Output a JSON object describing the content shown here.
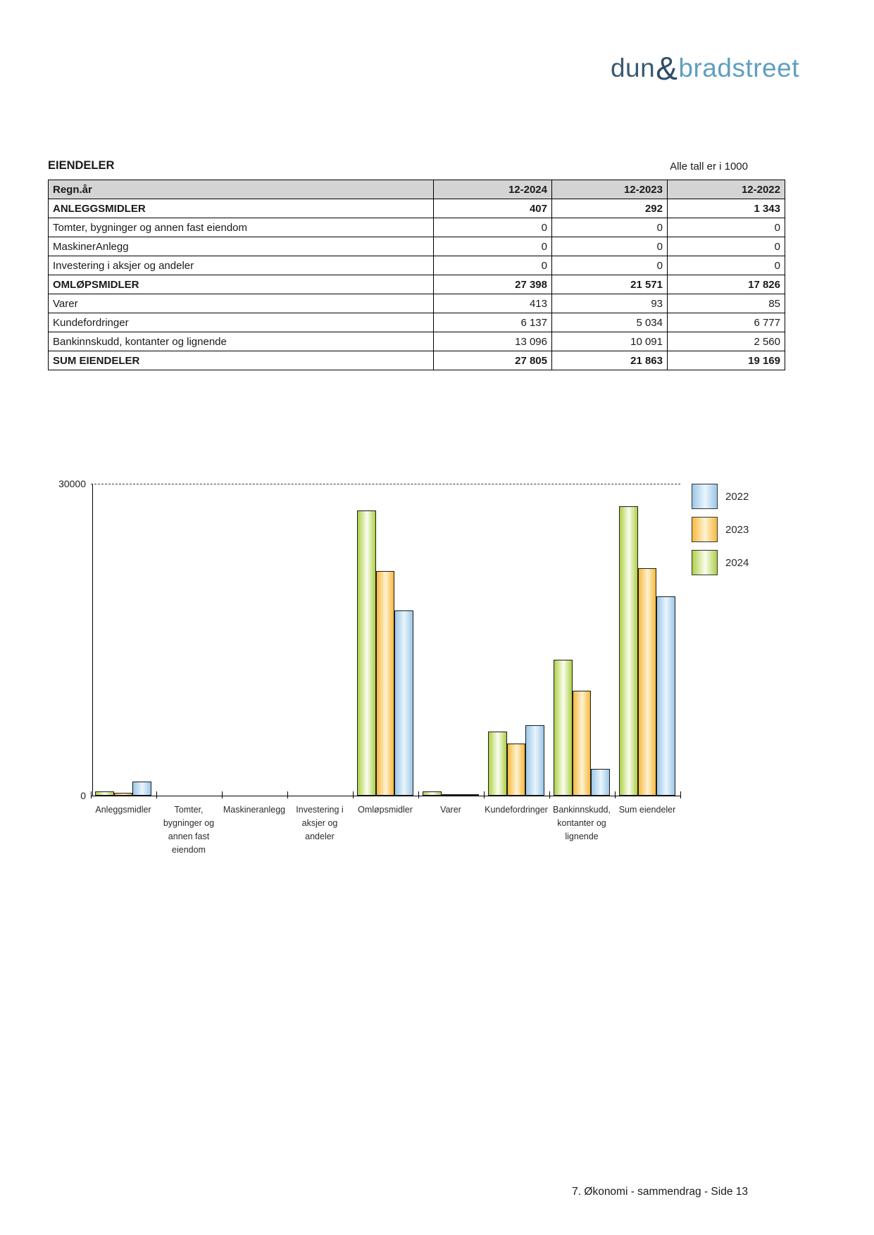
{
  "logo": {
    "word1": "dun",
    "ampersand": "&",
    "word2": "bradstreet",
    "color_word1": "#3b5a72",
    "color_amp": "#2f4d66",
    "color_word2": "#5f9fc1"
  },
  "section": {
    "title": "EIENDELER",
    "unit_note": "Alle tall er i 1000"
  },
  "table": {
    "columns": [
      "Regn.år",
      "12-2024",
      "12-2023",
      "12-2022"
    ],
    "rows": [
      {
        "label": "ANLEGGSMIDLER",
        "bold": true,
        "values": [
          "407",
          "292",
          "1 343"
        ]
      },
      {
        "label": "Tomter, bygninger og annen fast eiendom",
        "bold": false,
        "values": [
          "0",
          "0",
          "0"
        ]
      },
      {
        "label": "MaskinerAnlegg",
        "bold": false,
        "values": [
          "0",
          "0",
          "0"
        ]
      },
      {
        "label": "Investering i aksjer og andeler",
        "bold": false,
        "values": [
          "0",
          "0",
          "0"
        ]
      },
      {
        "label": "OMLØPSMIDLER",
        "bold": true,
        "values": [
          "27 398",
          "21 571",
          "17 826"
        ]
      },
      {
        "label": "Varer",
        "bold": false,
        "values": [
          "413",
          "93",
          "85"
        ]
      },
      {
        "label": "Kundefordringer",
        "bold": false,
        "values": [
          "6 137",
          "5 034",
          "6 777"
        ]
      },
      {
        "label": "Bankinnskudd, kontanter og lignende",
        "bold": false,
        "values": [
          "13 096",
          "10 091",
          "2 560"
        ]
      },
      {
        "label": "SUM EIENDELER",
        "bold": true,
        "values": [
          "27 805",
          "21 863",
          "19 169"
        ]
      }
    ]
  },
  "chart_data": {
    "type": "bar",
    "title": "",
    "xlabel": "",
    "ylabel": "",
    "ylim": [
      0,
      30000
    ],
    "ytick_labels": [
      "30000",
      "0"
    ],
    "grid": "single dashed gridline at y=30000",
    "legend_position": "right-top",
    "legend_order": [
      "2022",
      "2023",
      "2024"
    ],
    "categories": [
      "Anleggsmidler",
      "Tomter, bygninger og annen fast eiendom",
      "Maskineranlegg",
      "Investering i aksjer og andeler",
      "Omløpsmidler",
      "Varer",
      "Kundefordringer",
      "Bankinnskudd, kontanter og lignende",
      "Sum eiendeler"
    ],
    "category_label_lines": [
      [
        "Anleggsmidler"
      ],
      [
        "Tomter,",
        "bygninger og",
        "annen fast",
        "eiendom"
      ],
      [
        "Maskineranlegg"
      ],
      [
        "Investering i",
        "aksjer og",
        "andeler"
      ],
      [
        "Omløpsmidler"
      ],
      [
        "Varer"
      ],
      [
        "Kundefordringer"
      ],
      [
        "Bankinnskudd,",
        "kontanter og",
        "lignende"
      ],
      [
        "Sum eiendeler"
      ]
    ],
    "series": [
      {
        "name": "2024",
        "color": "#aed046",
        "color_light": "#fafdf0",
        "values": [
          407,
          0,
          0,
          0,
          27398,
          413,
          6137,
          13096,
          27805
        ]
      },
      {
        "name": "2023",
        "color": "#f7b93d",
        "color_light": "#fdf2d2",
        "values": [
          292,
          0,
          0,
          0,
          21571,
          93,
          5034,
          10091,
          21863
        ]
      },
      {
        "name": "2022",
        "color": "#9cc7e8",
        "color_light": "#eaf5fc",
        "values": [
          1343,
          0,
          0,
          0,
          17826,
          85,
          6777,
          2560,
          19169
        ]
      }
    ]
  },
  "footer": {
    "text": "7. Økonomi - sammendrag - Side 13"
  }
}
